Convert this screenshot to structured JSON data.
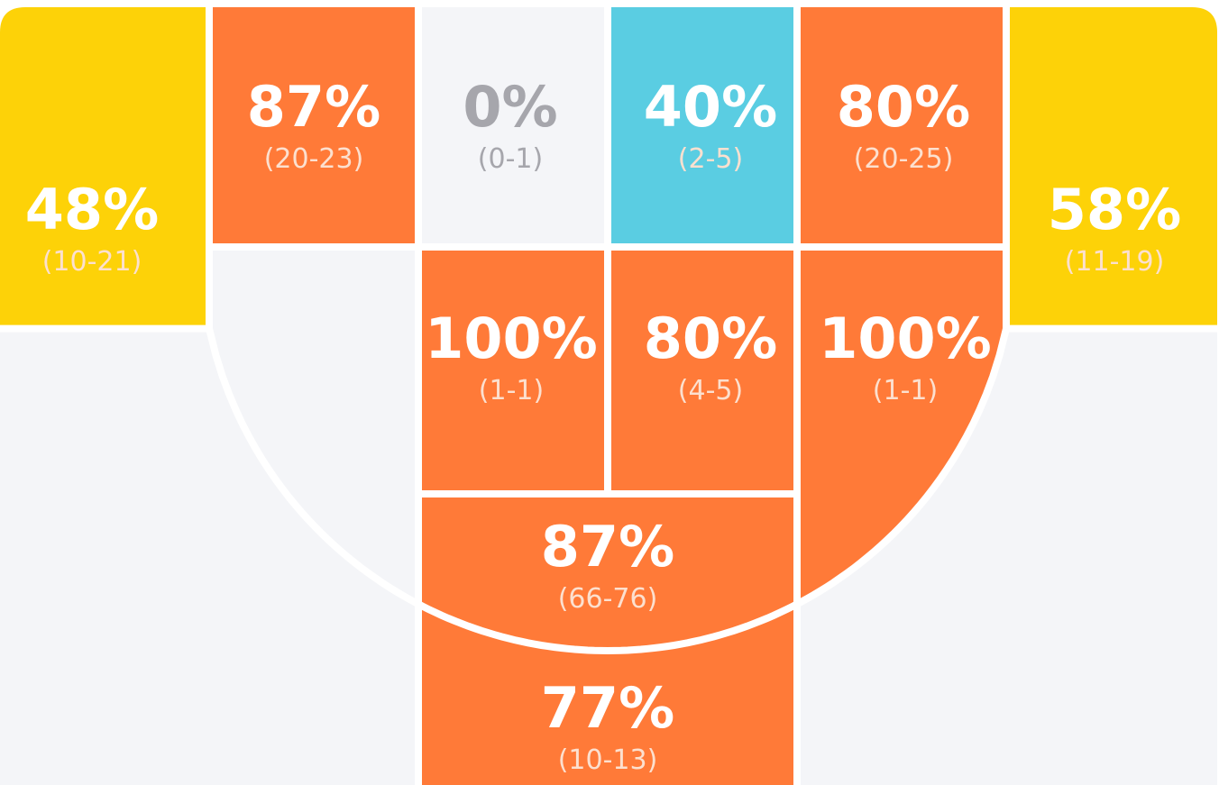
{
  "colors": {
    "hot": "#FF7A38",
    "warm": "#FDD208",
    "cold": "#5ACDE2",
    "empty": "#F4F5F8",
    "empty_text": "#A6A6AC",
    "pct_text": "#FFFFFF",
    "cnt_text": "#FCE0CF",
    "lines": "#FFFFFF"
  },
  "chart_data": {
    "type": "heatmap",
    "zones": [
      {
        "id": "left-corner-three",
        "pct": "48%",
        "count": "(10-21)",
        "made": 10,
        "attempts": 21,
        "level": "warm"
      },
      {
        "id": "left-wing-mid",
        "pct": "87%",
        "count": "(20-23)",
        "made": 20,
        "attempts": 23,
        "level": "hot"
      },
      {
        "id": "left-elbow-mid",
        "pct": "0%",
        "count": "(0-1)",
        "made": 0,
        "attempts": 1,
        "level": "empty"
      },
      {
        "id": "right-elbow-mid",
        "pct": "40%",
        "count": "(2-5)",
        "made": 2,
        "attempts": 5,
        "level": "cold"
      },
      {
        "id": "right-wing-mid",
        "pct": "80%",
        "count": "(20-25)",
        "made": 20,
        "attempts": 25,
        "level": "hot"
      },
      {
        "id": "right-corner-three",
        "pct": "58%",
        "count": "(11-19)",
        "made": 11,
        "attempts": 19,
        "level": "warm"
      },
      {
        "id": "left-paint",
        "pct": "100%",
        "count": "(1-1)",
        "made": 1,
        "attempts": 1,
        "level": "hot"
      },
      {
        "id": "center-paint",
        "pct": "80%",
        "count": "(4-5)",
        "made": 4,
        "attempts": 5,
        "level": "hot"
      },
      {
        "id": "right-baseline-mid",
        "pct": "100%",
        "count": "(1-1)",
        "made": 1,
        "attempts": 1,
        "level": "hot"
      },
      {
        "id": "top-key",
        "pct": "87%",
        "count": "(66-76)",
        "made": 66,
        "attempts": 76,
        "level": "hot"
      },
      {
        "id": "top-of-arc-three",
        "pct": "77%",
        "count": "(10-13)",
        "made": 10,
        "attempts": 13,
        "level": "hot"
      }
    ]
  }
}
